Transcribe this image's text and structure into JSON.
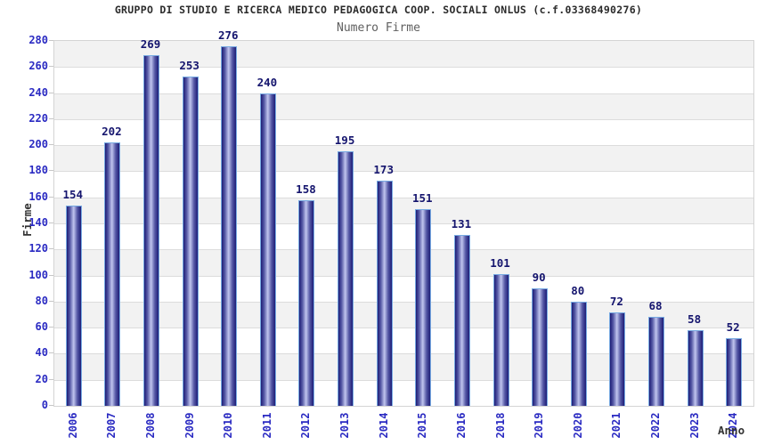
{
  "chart_data": {
    "type": "bar",
    "title": "GRUPPO DI STUDIO E RICERCA MEDICO PEDAGOGICA COOP. SOCIALI ONLUS (c.f.03368490276)",
    "subtitle": "Numero Firme",
    "xlabel": "Anno",
    "ylabel": "Firme",
    "ylim": [
      0,
      280
    ],
    "ytick_step": 20,
    "categories": [
      "2006",
      "2007",
      "2008",
      "2009",
      "2010",
      "2011",
      "2012",
      "2013",
      "2014",
      "2015",
      "2016",
      "2018",
      "2019",
      "2020",
      "2021",
      "2022",
      "2023",
      "2024"
    ],
    "values": [
      154,
      202,
      269,
      253,
      276,
      240,
      158,
      195,
      173,
      151,
      131,
      101,
      90,
      80,
      72,
      68,
      58,
      52
    ],
    "legend": "none",
    "grid": "horizontal gridlines every 20 with alternating gray/white bands",
    "value_labels": "above bars"
  },
  "colors": {
    "title": "#2b2b2b",
    "subtitle": "#5f5f5f",
    "axis_label": "#333333",
    "tick_label": "#2a2ac2",
    "value_label": "#15156e",
    "band_gray": "#f2f2f2",
    "gridline": "#dcdcdc",
    "plot_border": "#d4d4d4",
    "bar_border": "#77aae2",
    "bar_dark": "#1d1d76",
    "bar_mid": "#5558a5",
    "bar_light": "#c0c5ee"
  }
}
